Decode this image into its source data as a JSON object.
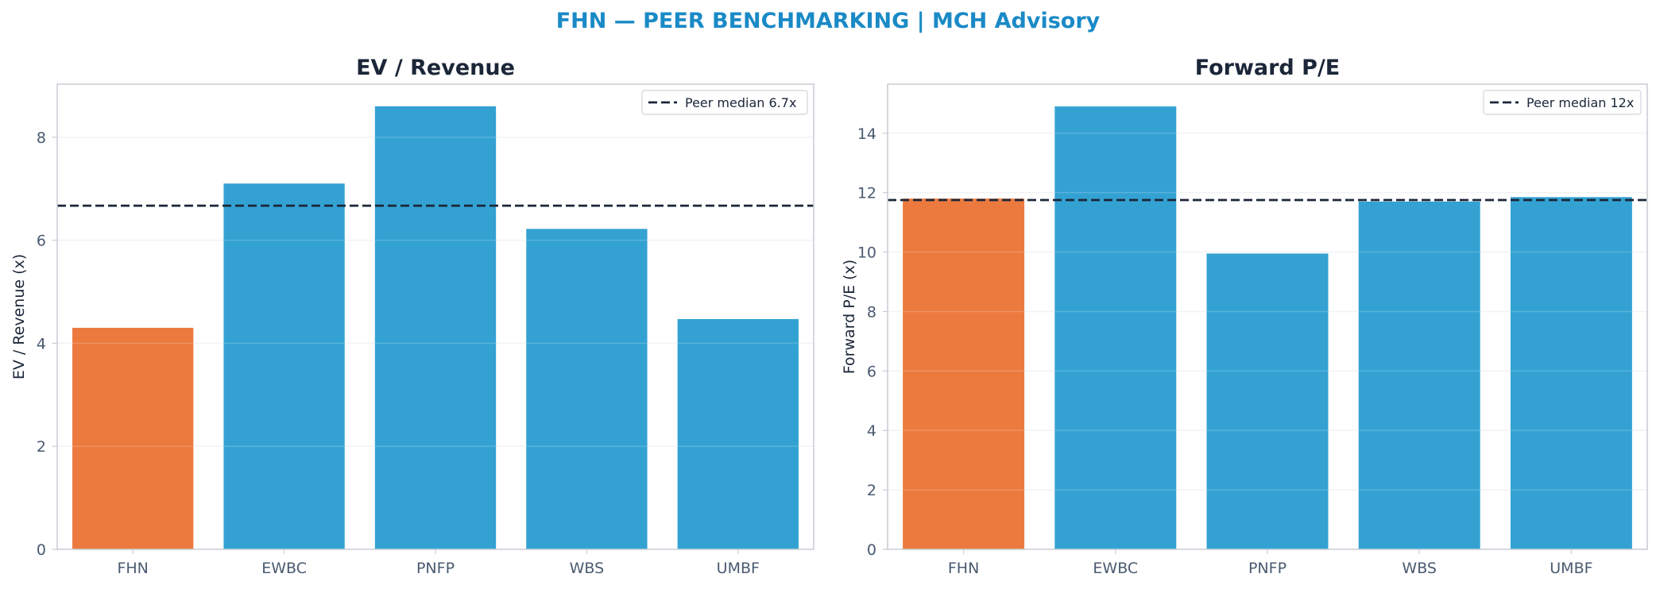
{
  "title": "FHN — PEER BENCHMARKING | MCH Advisory",
  "colors": {
    "title": "#1a8ac6",
    "highlight": "#ec7a3f",
    "peer": "#33a2d3",
    "median_line": "#1b2638",
    "axis": "#c8ccd4",
    "grid": "#eef0f3"
  },
  "chart_data": [
    {
      "type": "bar",
      "title": "EV / Revenue",
      "ylabel": "EV / Revenue (x)",
      "xlabel": "",
      "categories": [
        "FHN",
        "EWBC",
        "PNFP",
        "WBS",
        "UMBF"
      ],
      "values": [
        4.3,
        7.1,
        8.6,
        6.22,
        4.47
      ],
      "highlight": "FHN",
      "ylim": [
        0,
        9.03
      ],
      "yticks": [
        0,
        2,
        4,
        6,
        8
      ],
      "reference_line": {
        "value": 6.67,
        "label": "Peer median 6.7x"
      },
      "legend_position": "top-right",
      "grid": true
    },
    {
      "type": "bar",
      "title": "Forward P/E",
      "ylabel": "Forward P/E (x)",
      "xlabel": "",
      "categories": [
        "FHN",
        "EWBC",
        "PNFP",
        "WBS",
        "UMBF"
      ],
      "values": [
        11.8,
        14.9,
        9.95,
        11.7,
        11.85
      ],
      "highlight": "FHN",
      "ylim": [
        0,
        15.65
      ],
      "yticks": [
        0,
        2,
        4,
        6,
        8,
        10,
        12,
        14
      ],
      "reference_line": {
        "value": 11.75,
        "label": "Peer median 12x"
      },
      "legend_position": "top-right",
      "grid": true
    }
  ]
}
